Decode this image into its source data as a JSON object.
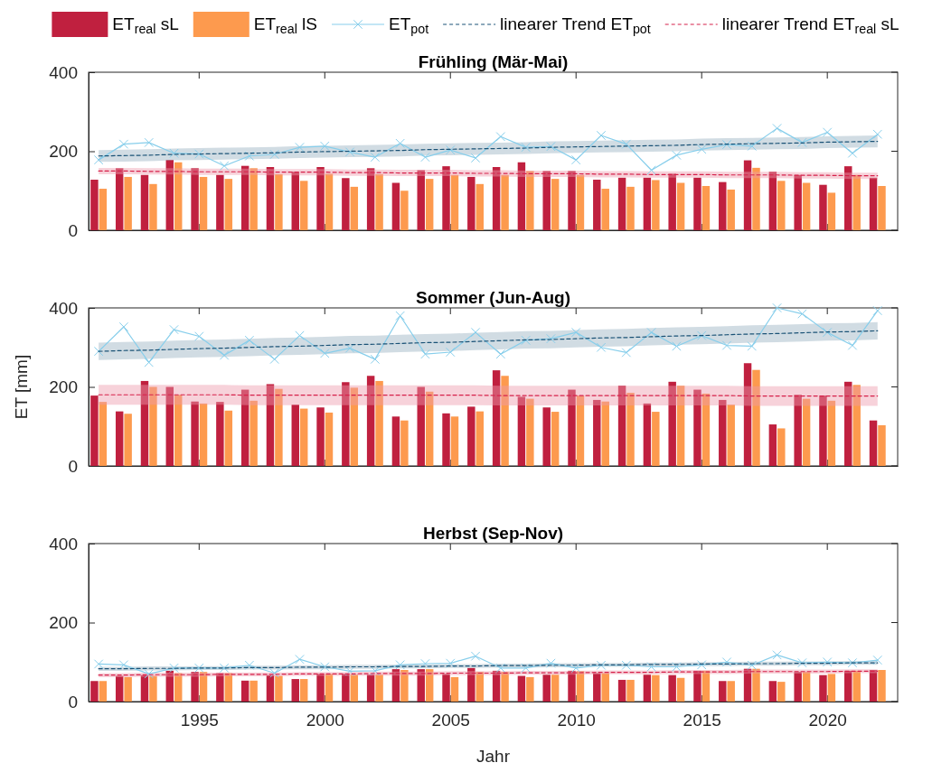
{
  "chart_data": [
    {
      "type": "bar",
      "title": "Frühling (Mär-Mai)",
      "x": [
        1991,
        1992,
        1993,
        1994,
        1995,
        1996,
        1997,
        1998,
        1999,
        2000,
        2001,
        2002,
        2003,
        2004,
        2005,
        2006,
        2007,
        2008,
        2009,
        2010,
        2011,
        2012,
        2013,
        2014,
        2015,
        2016,
        2017,
        2018,
        2019,
        2020,
        2021,
        2022
      ],
      "xlim": [
        1990.6,
        2022.8
      ],
      "xticks": [
        1995,
        2000,
        2005,
        2010,
        2015,
        2020
      ],
      "ylim": [
        0,
        400
      ],
      "yticks": [
        0,
        200,
        400
      ],
      "tick_labels": "y",
      "legend": "top",
      "series": [
        {
          "name": "ET$_{real}$ sL",
          "color": "#c0203f",
          "values": [
            128,
            157,
            140,
            178,
            157,
            140,
            163,
            160,
            148,
            160,
            132,
            157,
            120,
            152,
            162,
            135,
            160,
            172,
            150,
            150,
            128,
            133,
            133,
            143,
            133,
            122,
            177,
            148,
            140,
            115,
            162,
            133
          ]
        },
        {
          "name": "ET$_{real}$ lS",
          "color": "#fd9a4e",
          "values": [
            105,
            135,
            117,
            172,
            135,
            130,
            157,
            142,
            125,
            143,
            110,
            142,
            100,
            130,
            140,
            117,
            140,
            150,
            130,
            140,
            105,
            110,
            127,
            120,
            112,
            103,
            158,
            125,
            120,
            95,
            140,
            112
          ]
        },
        {
          "name": "ET$_{pot}$",
          "type": "line",
          "color": "#87ceeb",
          "marker": "cross",
          "line_style": "solid",
          "values": [
            178,
            218,
            222,
            195,
            193,
            163,
            188,
            192,
            210,
            213,
            198,
            185,
            220,
            185,
            203,
            183,
            237,
            210,
            212,
            178,
            240,
            218,
            152,
            190,
            205,
            217,
            213,
            258,
            222,
            248,
            195,
            243
          ]
        },
        {
          "name": "linearer Trend ET$_{pot}$",
          "type": "line",
          "color": "#1a5276",
          "marker": "none",
          "line_style": "dashed",
          "values": [
            188,
            189,
            190,
            192,
            193,
            194,
            195,
            196,
            198,
            199,
            200,
            201,
            202,
            204,
            205,
            206,
            207,
            208,
            210,
            211,
            212,
            213,
            214,
            215,
            217,
            218,
            219,
            220,
            221,
            223,
            224,
            225
          ],
          "lower": [
            173,
            174,
            175,
            177,
            178,
            179,
            180,
            181,
            183,
            184,
            185,
            186,
            187,
            189,
            190,
            191,
            192,
            193,
            195,
            196,
            197,
            198,
            199,
            200,
            202,
            203,
            204,
            205,
            206,
            208,
            209,
            210
          ],
          "upper": [
            203,
            204,
            205,
            207,
            208,
            209,
            210,
            211,
            213,
            214,
            215,
            216,
            217,
            219,
            220,
            221,
            222,
            223,
            225,
            226,
            227,
            228,
            229,
            230,
            232,
            233,
            234,
            235,
            236,
            238,
            239,
            240
          ]
        },
        {
          "name": "linearer Trend ET$_{real}$ sL",
          "type": "line",
          "color": "#d6204a",
          "marker": "none",
          "line_style": "dashed",
          "values": [
            150,
            150,
            149,
            149,
            148,
            148,
            148,
            147,
            147,
            147,
            146,
            146,
            145,
            145,
            145,
            144,
            144,
            143,
            143,
            143,
            142,
            142,
            141,
            141,
            141,
            140,
            140,
            140,
            139,
            139,
            138,
            138
          ],
          "lower": [
            142,
            142,
            141,
            141,
            140,
            140,
            140,
            139,
            139,
            139,
            138,
            138,
            137,
            137,
            137,
            136,
            136,
            135,
            135,
            135,
            134,
            134,
            133,
            133,
            133,
            132,
            132,
            132,
            131,
            131,
            130,
            130
          ],
          "upper": [
            158,
            158,
            157,
            157,
            156,
            156,
            156,
            155,
            155,
            155,
            154,
            154,
            153,
            153,
            153,
            152,
            152,
            151,
            151,
            151,
            150,
            150,
            149,
            149,
            149,
            148,
            148,
            148,
            147,
            147,
            146,
            146
          ]
        }
      ]
    },
    {
      "type": "bar",
      "title": "Sommer (Jun-Aug)",
      "ylabel": "ET [mm]",
      "x": [
        1991,
        1992,
        1993,
        1994,
        1995,
        1996,
        1997,
        1998,
        1999,
        2000,
        2001,
        2002,
        2003,
        2004,
        2005,
        2006,
        2007,
        2008,
        2009,
        2010,
        2011,
        2012,
        2013,
        2014,
        2015,
        2016,
        2017,
        2018,
        2019,
        2020,
        2021,
        2022
      ],
      "xlim": [
        1990.6,
        2022.8
      ],
      "xticks": [
        1995,
        2000,
        2005,
        2010,
        2015,
        2020
      ],
      "ylim": [
        0,
        400
      ],
      "yticks": [
        0,
        200,
        400
      ],
      "tick_labels": "y",
      "series": [
        {
          "color": "#c0203f",
          "values": [
            178,
            138,
            215,
            200,
            163,
            162,
            193,
            207,
            155,
            148,
            212,
            228,
            125,
            200,
            133,
            150,
            242,
            175,
            148,
            193,
            167,
            203,
            158,
            213,
            193,
            167,
            260,
            105,
            180,
            178,
            213,
            115
          ]
        },
        {
          "color": "#fd9a4e",
          "values": [
            162,
            132,
            200,
            180,
            158,
            140,
            165,
            195,
            145,
            135,
            198,
            215,
            115,
            188,
            125,
            138,
            228,
            170,
            137,
            178,
            163,
            185,
            137,
            203,
            183,
            155,
            243,
            95,
            170,
            165,
            205,
            103
          ]
        },
        {
          "type": "line",
          "color": "#87ceeb",
          "marker": "cross",
          "line_style": "solid",
          "values": [
            290,
            352,
            262,
            345,
            328,
            280,
            318,
            270,
            330,
            285,
            298,
            270,
            380,
            283,
            288,
            338,
            283,
            318,
            322,
            338,
            300,
            287,
            338,
            303,
            330,
            305,
            303,
            400,
            385,
            338,
            305,
            393
          ]
        },
        {
          "type": "line",
          "color": "#1a5276",
          "marker": "none",
          "line_style": "dashed",
          "values": [
            290,
            292,
            293,
            295,
            297,
            298,
            300,
            302,
            303,
            305,
            307,
            308,
            310,
            312,
            313,
            315,
            317,
            319,
            320,
            322,
            324,
            325,
            327,
            329,
            330,
            332,
            334,
            335,
            337,
            339,
            340,
            342
          ],
          "lower": [
            268,
            270,
            271,
            273,
            275,
            276,
            278,
            280,
            281,
            283,
            285,
            286,
            288,
            290,
            291,
            293,
            295,
            297,
            298,
            300,
            302,
            303,
            305,
            307,
            308,
            310,
            312,
            313,
            315,
            317,
            318,
            320
          ],
          "upper": [
            312,
            314,
            315,
            317,
            319,
            320,
            322,
            324,
            325,
            327,
            329,
            330,
            332,
            334,
            335,
            337,
            339,
            341,
            342,
            344,
            346,
            347,
            349,
            351,
            352,
            354,
            356,
            357,
            359,
            361,
            362,
            364
          ]
        },
        {
          "type": "line",
          "color": "#d6204a",
          "marker": "none",
          "line_style": "dashed",
          "values": [
            180,
            180,
            180,
            180,
            180,
            180,
            179,
            179,
            179,
            179,
            179,
            179,
            179,
            179,
            179,
            179,
            178,
            178,
            178,
            178,
            178,
            178,
            178,
            178,
            178,
            178,
            177,
            177,
            177,
            177,
            177,
            177
          ],
          "lower": [
            155,
            155,
            155,
            155,
            155,
            155,
            154,
            154,
            154,
            154,
            154,
            154,
            154,
            154,
            154,
            154,
            153,
            153,
            153,
            153,
            153,
            153,
            153,
            153,
            153,
            153,
            152,
            152,
            152,
            152,
            152,
            152
          ],
          "upper": [
            205,
            205,
            205,
            205,
            205,
            205,
            204,
            204,
            204,
            204,
            204,
            204,
            204,
            204,
            204,
            204,
            203,
            203,
            203,
            203,
            203,
            203,
            203,
            203,
            203,
            203,
            202,
            202,
            202,
            202,
            202,
            202
          ]
        }
      ]
    },
    {
      "type": "bar",
      "title": "Herbst (Sep-Nov)",
      "xlabel": "Jahr",
      "x": [
        1991,
        1992,
        1993,
        1994,
        1995,
        1996,
        1997,
        1998,
        1999,
        2000,
        2001,
        2002,
        2003,
        2004,
        2005,
        2006,
        2007,
        2008,
        2009,
        2010,
        2011,
        2012,
        2013,
        2014,
        2015,
        2016,
        2017,
        2018,
        2019,
        2020,
        2021,
        2022
      ],
      "xlim": [
        1990.6,
        2022.8
      ],
      "xticks": [
        1995,
        2000,
        2005,
        2010,
        2015,
        2020
      ],
      "ylim": [
        0,
        400
      ],
      "yticks": [
        0,
        200,
        400
      ],
      "series": [
        {
          "color": "#c0203f",
          "values": [
            52,
            65,
            67,
            78,
            75,
            72,
            53,
            67,
            57,
            70,
            70,
            68,
            82,
            82,
            70,
            85,
            78,
            65,
            68,
            78,
            72,
            55,
            68,
            67,
            78,
            52,
            83,
            52,
            75,
            67,
            78,
            80
          ]
        },
        {
          "color": "#fd9a4e",
          "values": [
            52,
            62,
            65,
            72,
            75,
            72,
            53,
            65,
            57,
            70,
            68,
            68,
            80,
            82,
            62,
            75,
            75,
            62,
            68,
            77,
            72,
            55,
            67,
            60,
            78,
            52,
            83,
            50,
            75,
            70,
            78,
            80
          ]
        },
        {
          "type": "line",
          "color": "#87ceeb",
          "marker": "cross",
          "line_style": "solid",
          "values": [
            95,
            93,
            70,
            85,
            85,
            85,
            92,
            72,
            107,
            88,
            77,
            78,
            93,
            96,
            97,
            115,
            85,
            85,
            97,
            85,
            92,
            92,
            88,
            88,
            93,
            100,
            92,
            118,
            98,
            100,
            98,
            105
          ]
        },
        {
          "type": "line",
          "color": "#1a5276",
          "marker": "none",
          "line_style": "dashed",
          "values": [
            83,
            83,
            84,
            84,
            85,
            85,
            86,
            86,
            87,
            87,
            88,
            88,
            89,
            89,
            90,
            90,
            91,
            91,
            92,
            92,
            93,
            93,
            94,
            94,
            95,
            95,
            96,
            96,
            97,
            97,
            98,
            98
          ],
          "lower": [
            78,
            78,
            79,
            79,
            80,
            80,
            81,
            81,
            82,
            82,
            83,
            83,
            84,
            84,
            85,
            85,
            86,
            86,
            87,
            87,
            88,
            88,
            89,
            89,
            90,
            90,
            91,
            91,
            92,
            92,
            93,
            93
          ],
          "upper": [
            88,
            88,
            89,
            89,
            90,
            90,
            91,
            91,
            92,
            92,
            93,
            93,
            94,
            94,
            95,
            95,
            96,
            96,
            97,
            97,
            98,
            98,
            99,
            99,
            100,
            100,
            101,
            101,
            102,
            102,
            103,
            103
          ]
        },
        {
          "type": "line",
          "color": "#d6204a",
          "marker": "none",
          "line_style": "dashed",
          "values": [
            67,
            67,
            68,
            68,
            68,
            69,
            69,
            69,
            70,
            70,
            70,
            71,
            71,
            71,
            72,
            72,
            72,
            73,
            73,
            73,
            74,
            74,
            74,
            75,
            75,
            75,
            76,
            76,
            76,
            76,
            77,
            77
          ],
          "lower": [
            62,
            62,
            63,
            63,
            63,
            64,
            64,
            64,
            65,
            65,
            65,
            66,
            66,
            66,
            67,
            67,
            67,
            68,
            68,
            68,
            69,
            69,
            69,
            70,
            70,
            70,
            71,
            71,
            71,
            71,
            72,
            72
          ],
          "upper": [
            72,
            72,
            73,
            73,
            73,
            74,
            74,
            74,
            75,
            75,
            75,
            76,
            76,
            76,
            77,
            77,
            77,
            78,
            78,
            78,
            79,
            79,
            79,
            80,
            80,
            80,
            81,
            81,
            81,
            81,
            82,
            82
          ]
        }
      ]
    }
  ]
}
